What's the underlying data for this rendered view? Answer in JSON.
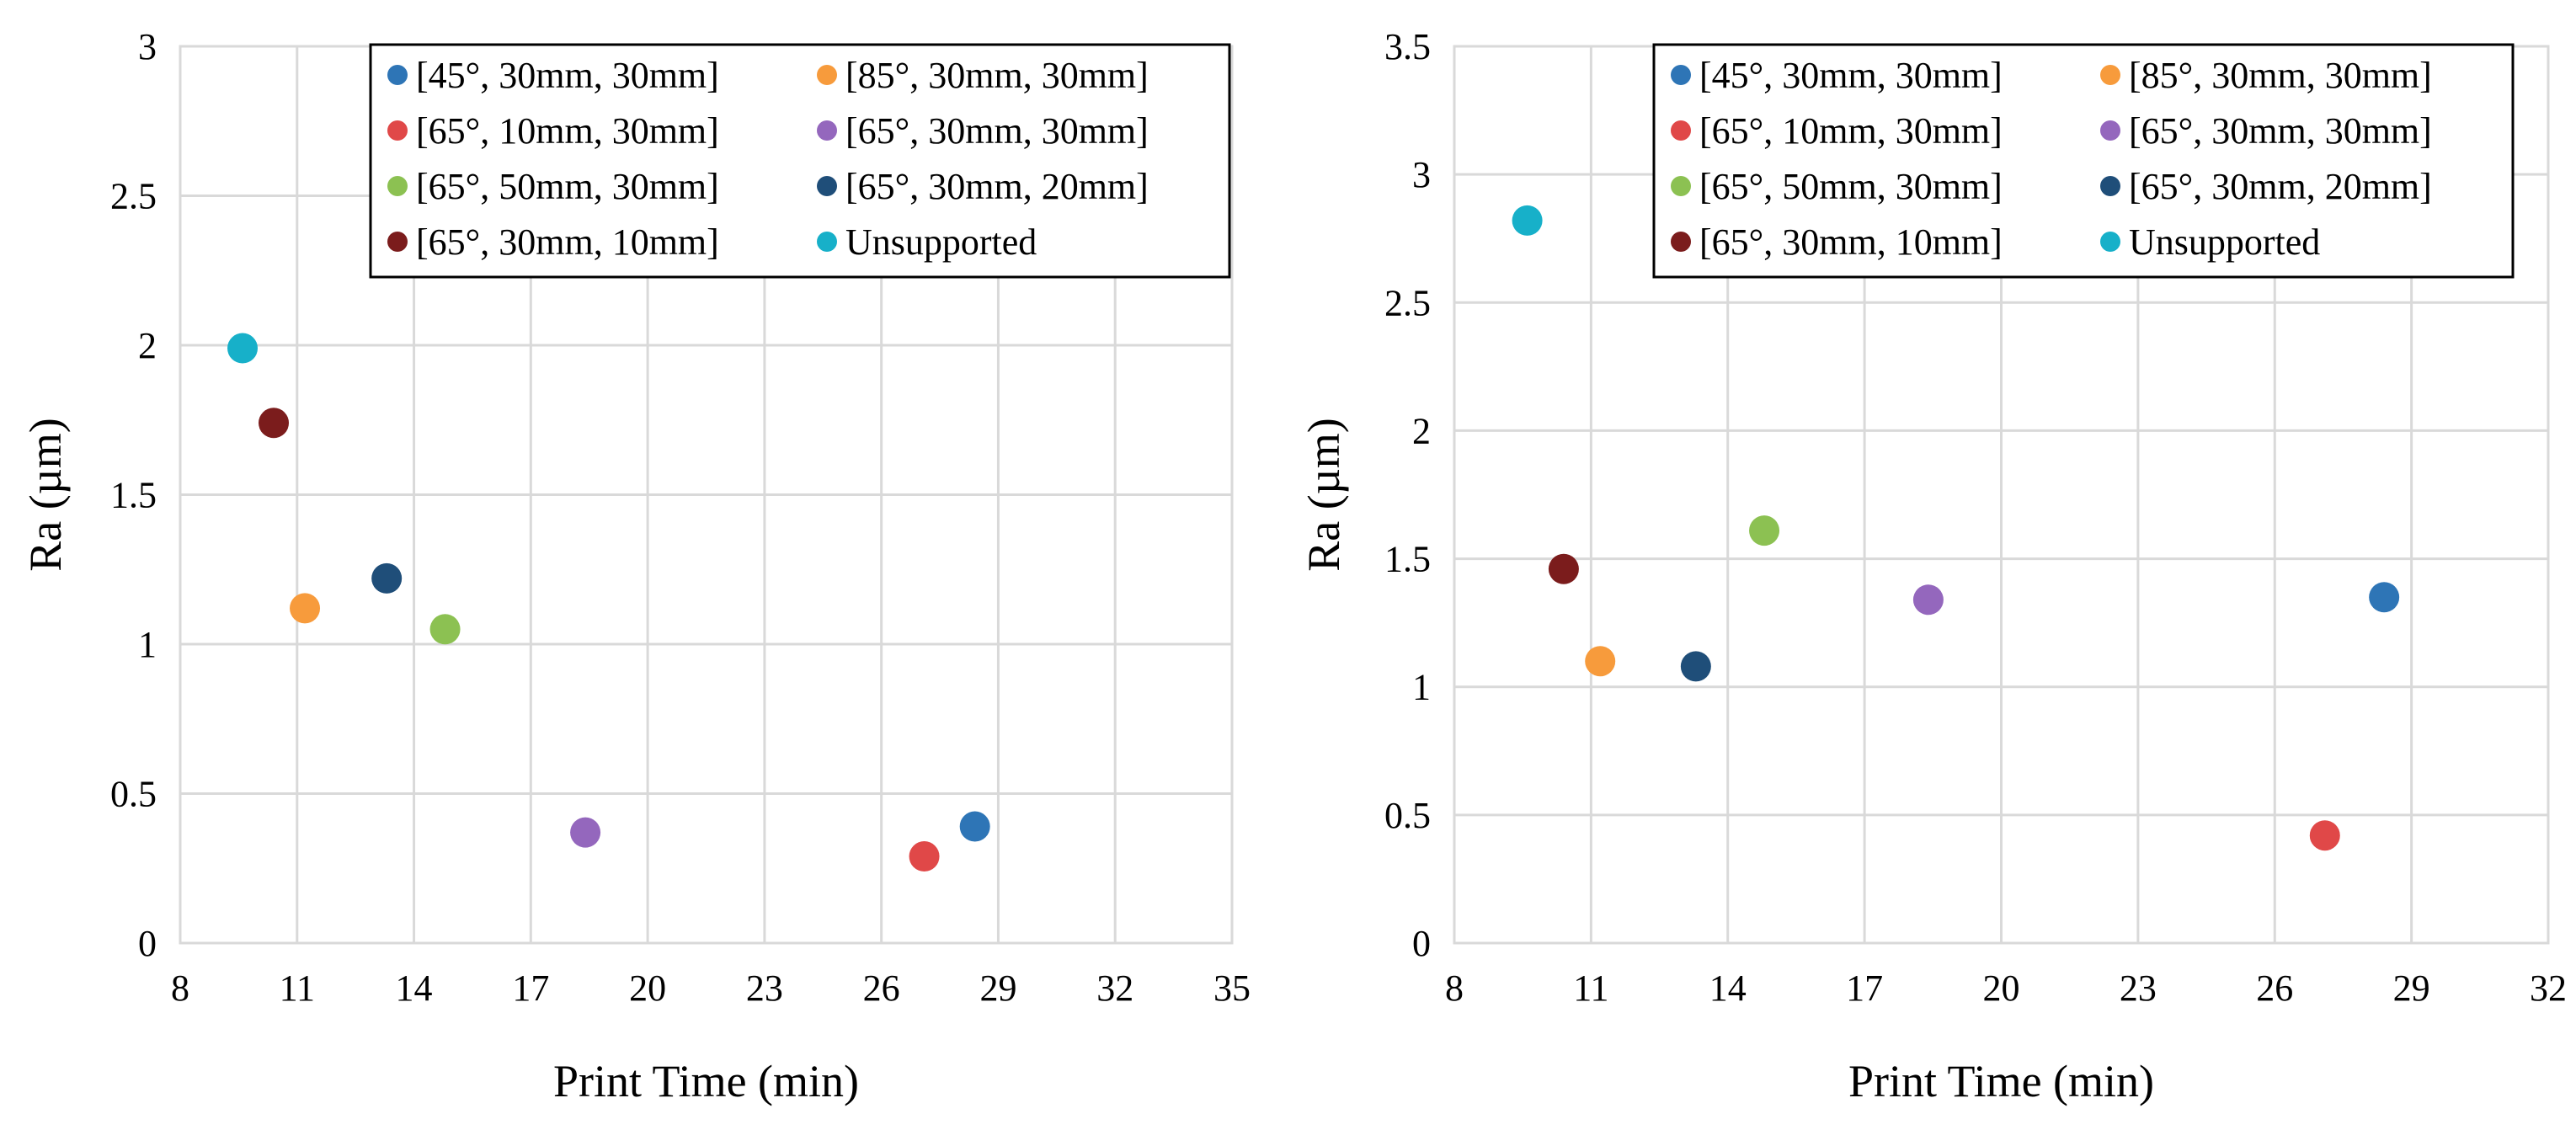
{
  "chart_data": [
    {
      "type": "scatter",
      "xlabel": "Print Time (min)",
      "ylabel": "Ra (µm)",
      "xlim": [
        8,
        35
      ],
      "ylim": [
        0,
        3
      ],
      "xticks": [
        8,
        11,
        14,
        17,
        20,
        23,
        26,
        29,
        32,
        35
      ],
      "yticks": [
        0,
        0.5,
        1,
        1.5,
        2,
        2.5,
        3
      ],
      "grid": true,
      "legend_position": "top-right",
      "series": [
        {
          "name": "[45°, 30mm, 30mm]",
          "color": "#2e75b6",
          "x": 28.4,
          "y": 0.39
        },
        {
          "name": "[85°, 30mm, 30mm]",
          "color": "#f79b3c",
          "x": 11.2,
          "y": 1.12
        },
        {
          "name": "[65°, 10mm, 30mm]",
          "color": "#e04848",
          "x": 27.1,
          "y": 0.29
        },
        {
          "name": "[65°, 30mm, 30mm]",
          "color": "#9467bd",
          "x": 18.4,
          "y": 0.37
        },
        {
          "name": "[65°, 50mm, 30mm]",
          "color": "#8cc152",
          "x": 14.8,
          "y": 1.05
        },
        {
          "name": "[65°, 30mm, 20mm]",
          "color": "#1f4e79",
          "x": 13.3,
          "y": 1.22
        },
        {
          "name": "[65°, 30mm, 10mm]",
          "color": "#7b1c1c",
          "x": 10.4,
          "y": 1.74
        },
        {
          "name": "Unsupported",
          "color": "#17b0c9",
          "x": 9.6,
          "y": 1.99
        }
      ]
    },
    {
      "type": "scatter",
      "xlabel": "Print Time (min)",
      "ylabel": "Ra (µm)",
      "xlim": [
        8,
        32
      ],
      "ylim": [
        0,
        3.5
      ],
      "xticks": [
        8,
        11,
        14,
        17,
        20,
        23,
        26,
        29,
        32
      ],
      "yticks": [
        0,
        0.5,
        1,
        1.5,
        2,
        2.5,
        3,
        3.5
      ],
      "grid": true,
      "legend_position": "top-right",
      "series": [
        {
          "name": "[45°, 30mm, 30mm]",
          "color": "#2e75b6",
          "x": 28.4,
          "y": 1.35
        },
        {
          "name": "[85°, 30mm, 30mm]",
          "color": "#f79b3c",
          "x": 11.2,
          "y": 1.1
        },
        {
          "name": "[65°, 10mm, 30mm]",
          "color": "#e04848",
          "x": 27.1,
          "y": 0.42
        },
        {
          "name": "[65°, 30mm, 30mm]",
          "color": "#9467bd",
          "x": 18.4,
          "y": 1.34
        },
        {
          "name": "[65°, 50mm, 30mm]",
          "color": "#8cc152",
          "x": 14.8,
          "y": 1.61
        },
        {
          "name": "[65°, 30mm, 20mm]",
          "color": "#1f4e79",
          "x": 13.3,
          "y": 1.08
        },
        {
          "name": "[65°, 30mm, 10mm]",
          "color": "#7b1c1c",
          "x": 10.4,
          "y": 1.46
        },
        {
          "name": "Unsupported",
          "color": "#17b0c9",
          "x": 9.6,
          "y": 2.82
        }
      ]
    }
  ]
}
